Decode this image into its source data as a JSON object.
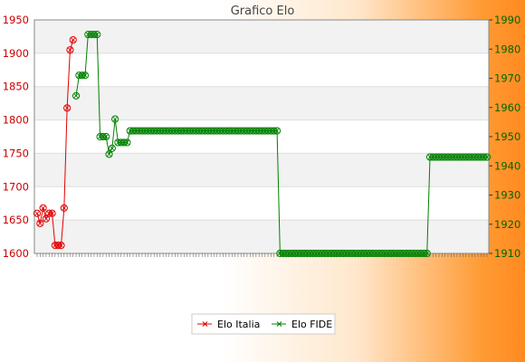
{
  "chart_data": {
    "type": "line",
    "title": "Grafico Elo",
    "xlabel": "",
    "grid": true,
    "legend_position": "bottom",
    "x_tick_labels_note": "",
    "y_left": {
      "ylim": [
        1600,
        1950
      ],
      "ticks": [
        1600,
        1650,
        1700,
        1750,
        1800,
        1850,
        1900,
        1950
      ],
      "color": "#cc0000"
    },
    "y_right": {
      "ylim": [
        1910,
        1990
      ],
      "ticks": [
        1910,
        1920,
        1930,
        1940,
        1950,
        1960,
        1970,
        1980,
        1990
      ],
      "color": "#006600"
    },
    "series": [
      {
        "name": "Elo Italia",
        "axis": "left",
        "color": "#e00000",
        "values": [
          1660,
          1645,
          1668,
          1652,
          1660,
          1660,
          1612,
          1612,
          1612,
          1668,
          1818,
          1905,
          1920
        ]
      },
      {
        "name": "Elo FIDE",
        "axis": "right",
        "color": "#008000",
        "values_note": "",
        "values": [
          null,
          null,
          null,
          null,
          null,
          null,
          null,
          null,
          null,
          null,
          null,
          null,
          null,
          1964,
          1971,
          1971,
          1971,
          1985,
          1985,
          1985,
          1985,
          1950,
          1950,
          1950,
          1944,
          1946,
          1956,
          1948,
          1948,
          1948,
          1948,
          1952,
          1952,
          1952,
          1952,
          1952,
          1952,
          1952,
          1952,
          1952,
          1952,
          1952,
          1952,
          1952,
          1952,
          1952,
          1952,
          1952,
          1952,
          1952,
          1952,
          1952,
          1952,
          1952,
          1952,
          1952,
          1952,
          1952,
          1952,
          1952,
          1952,
          1952,
          1952,
          1952,
          1952,
          1952,
          1952,
          1952,
          1952,
          1952,
          1952,
          1952,
          1952,
          1952,
          1952,
          1952,
          1952,
          1952,
          1952,
          1952,
          1952,
          1910,
          1910,
          1910,
          1910,
          1910,
          1910,
          1910,
          1910,
          1910,
          1910,
          1910,
          1910,
          1910,
          1910,
          1910,
          1910,
          1910,
          1910,
          1910,
          1910,
          1910,
          1910,
          1910,
          1910,
          1910,
          1910,
          1910,
          1910,
          1910,
          1910,
          1910,
          1910,
          1910,
          1910,
          1910,
          1910,
          1910,
          1910,
          1910,
          1910,
          1910,
          1910,
          1910,
          1910,
          1910,
          1910,
          1910,
          1910,
          1910,
          1910,
          1943,
          1943,
          1943,
          1943,
          1943,
          1943,
          1943,
          1943,
          1943,
          1943,
          1943,
          1943,
          1943,
          1943,
          1943,
          1943,
          1943,
          1943,
          1943,
          1943
        ]
      }
    ]
  }
}
